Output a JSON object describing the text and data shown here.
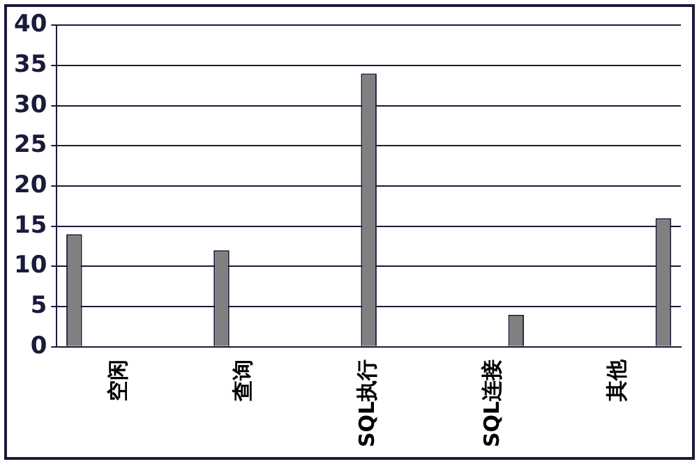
{
  "chart_data": {
    "type": "bar",
    "categories": [
      "空闲",
      "查询",
      "SQL执行",
      "SQL连接",
      "其他"
    ],
    "series": [
      {
        "color": "#808080",
        "values": [
          14,
          null,
          null,
          null,
          null
        ]
      },
      {
        "color": "#808080",
        "values": [
          null,
          12,
          null,
          null,
          null
        ]
      },
      {
        "color": "#808080",
        "values": [
          null,
          null,
          34,
          null,
          null
        ]
      },
      {
        "color": "#808080",
        "values": [
          null,
          null,
          null,
          4,
          null
        ]
      },
      {
        "color": "#808080",
        "values": [
          null,
          null,
          null,
          null,
          16
        ]
      }
    ],
    "ylim": [
      0,
      40
    ],
    "yticks": [
      0,
      5,
      10,
      15,
      20,
      25,
      30,
      35,
      40
    ],
    "grid": "y",
    "legend": false
  }
}
